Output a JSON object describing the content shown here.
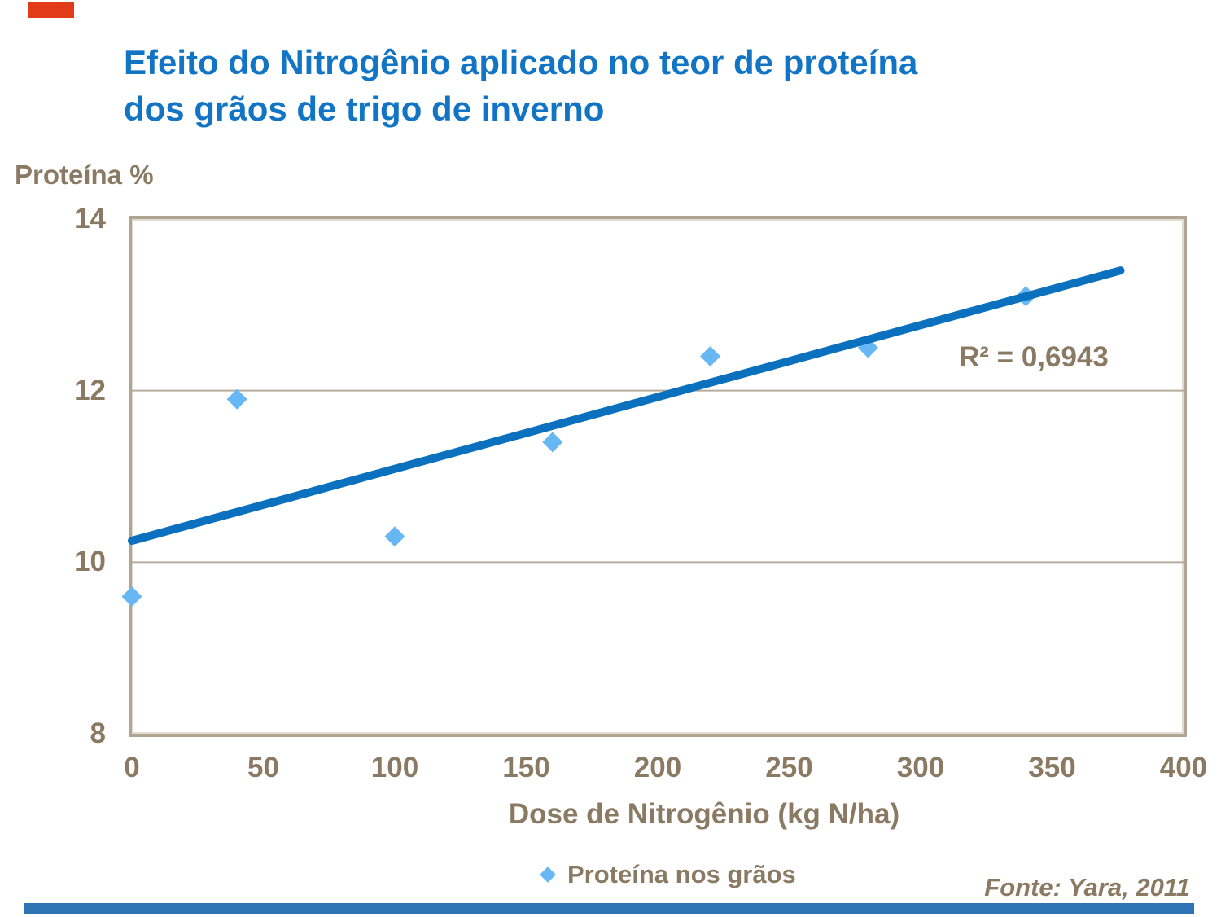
{
  "slide": {
    "title_line1": "Efeito do Nitrogênio aplicado no teor de proteína",
    "title_line2": "dos grãos de trigo de inverno",
    "source": "Fonte: Yara, 2011"
  },
  "chart_data": {
    "type": "scatter",
    "title": "",
    "ylabel": "Proteína %",
    "xlabel": "Dose de Nitrogênio (kg N/ha)",
    "xlim": [
      0,
      400
    ],
    "ylim": [
      8,
      14
    ],
    "x_ticks": [
      "0",
      "50",
      "100",
      "150",
      "200",
      "250",
      "300",
      "350",
      "400"
    ],
    "y_ticks": [
      "14",
      "12",
      "10",
      "8"
    ],
    "y_tick_values": [
      14,
      12,
      10,
      8
    ],
    "gridlines_y": [
      12,
      10
    ],
    "grid": "horizontal-only",
    "legend_position": "bottom",
    "series": [
      {
        "name": "Proteína nos grãos",
        "marker": "diamond",
        "points": [
          [
            0,
            9.6
          ],
          [
            40,
            11.9
          ],
          [
            100,
            10.3
          ],
          [
            160,
            11.4
          ],
          [
            220,
            12.4
          ],
          [
            280,
            12.5
          ],
          [
            340,
            13.1
          ]
        ]
      }
    ],
    "trendline": {
      "x1": 0,
      "y1": 10.25,
      "x2": 376,
      "y2": 13.4
    },
    "r_squared_label": "R² = 0,6943",
    "legend_label": "Proteína nos grãos"
  },
  "colors": {
    "title_blue": "#1174c5",
    "trend_blue": "#0b70be",
    "point_blue": "#66b7f3",
    "text_brown": "#8a7a63",
    "plot_border_tan": "#b0a595",
    "gridline": "#b7ac9c",
    "red_accent": "#e23b17",
    "footer_blue": "#2e74b5",
    "background": "#ffffff"
  }
}
